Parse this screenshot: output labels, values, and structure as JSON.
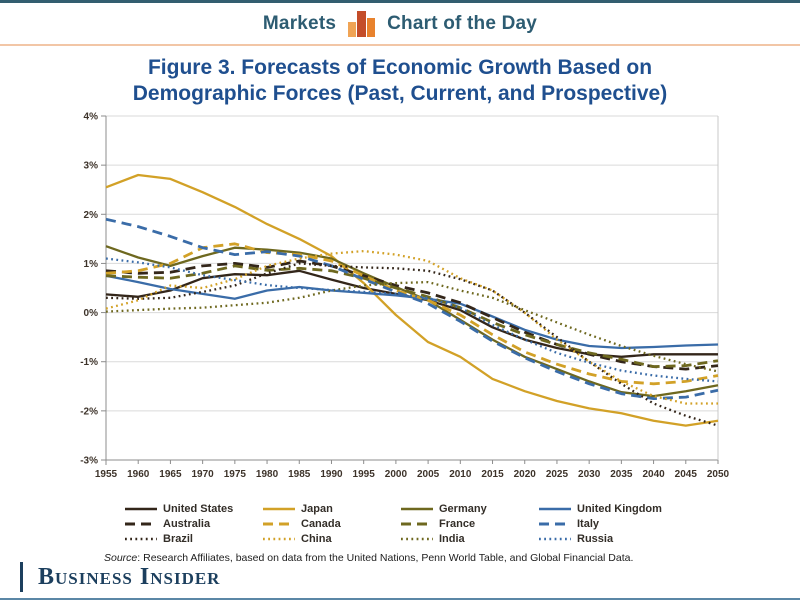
{
  "header": {
    "left_label": "Markets",
    "right_label": "Chart of the Day",
    "icon": "bar-chart-icon"
  },
  "title": {
    "line1": "Figure 3. Forecasts of Economic Growth Based on",
    "line2": "Demographic Forces (Past, Current, and Prospective)"
  },
  "chart_data": {
    "type": "line",
    "x": [
      1955,
      1960,
      1965,
      1970,
      1975,
      1980,
      1985,
      1990,
      1995,
      2000,
      2005,
      2010,
      2015,
      2020,
      2025,
      2030,
      2035,
      2040,
      2045,
      2050
    ],
    "ylim": [
      -3,
      4
    ],
    "ytick_step": 1,
    "ytick_labels": [
      "4%",
      "3%",
      "2%",
      "1%",
      "0%",
      "-1%",
      "-2%",
      "-3%"
    ],
    "grid": true,
    "legend_position": "bottom",
    "palette": {
      "dark": "#33261a",
      "gold": "#d2a127",
      "olive": "#6e681f",
      "blue": "#3a6ca8"
    },
    "series": [
      {
        "name": "United States",
        "family": "dark",
        "dash": "solid",
        "values": [
          0.37,
          0.32,
          0.45,
          0.7,
          0.78,
          0.76,
          0.85,
          0.67,
          0.5,
          0.38,
          0.25,
          0.05,
          -0.3,
          -0.55,
          -0.72,
          -0.85,
          -0.9,
          -0.85,
          -0.85,
          -0.85
        ]
      },
      {
        "name": "Japan",
        "family": "gold",
        "dash": "solid",
        "values": [
          2.55,
          2.8,
          2.72,
          2.45,
          2.15,
          1.8,
          1.5,
          1.15,
          0.6,
          -0.05,
          -0.6,
          -0.9,
          -1.35,
          -1.6,
          -1.8,
          -1.95,
          -2.05,
          -2.2,
          -2.3,
          -2.2
        ]
      },
      {
        "name": "Germany",
        "family": "olive",
        "dash": "solid",
        "values": [
          1.35,
          1.12,
          0.95,
          1.15,
          1.32,
          1.28,
          1.22,
          1.1,
          0.8,
          0.52,
          0.25,
          -0.15,
          -0.55,
          -0.9,
          -1.15,
          -1.4,
          -1.62,
          -1.7,
          -1.6,
          -1.48
        ]
      },
      {
        "name": "United Kingdom",
        "family": "blue",
        "dash": "solid",
        "values": [
          0.75,
          0.62,
          0.48,
          0.38,
          0.28,
          0.45,
          0.52,
          0.45,
          0.4,
          0.35,
          0.28,
          0.18,
          -0.08,
          -0.35,
          -0.55,
          -0.68,
          -0.72,
          -0.7,
          -0.67,
          -0.65
        ]
      },
      {
        "name": "Australia",
        "family": "dark",
        "dash": "dashed",
        "values": [
          0.85,
          0.8,
          0.82,
          0.95,
          1.0,
          0.92,
          1.05,
          0.95,
          0.75,
          0.55,
          0.4,
          0.2,
          -0.1,
          -0.4,
          -0.65,
          -0.85,
          -1.0,
          -1.1,
          -1.15,
          -1.08
        ]
      },
      {
        "name": "Canada",
        "family": "gold",
        "dash": "dashed",
        "values": [
          0.8,
          0.85,
          1.0,
          1.32,
          1.4,
          1.22,
          1.18,
          1.05,
          0.75,
          0.45,
          0.25,
          -0.05,
          -0.45,
          -0.8,
          -1.05,
          -1.25,
          -1.4,
          -1.45,
          -1.4,
          -1.28
        ]
      },
      {
        "name": "France",
        "family": "olive",
        "dash": "dashed",
        "values": [
          0.75,
          0.72,
          0.7,
          0.8,
          0.95,
          0.86,
          0.9,
          0.85,
          0.7,
          0.5,
          0.32,
          0.1,
          -0.2,
          -0.45,
          -0.65,
          -0.82,
          -0.95,
          -1.1,
          -1.08,
          -0.98
        ]
      },
      {
        "name": "Italy",
        "family": "blue",
        "dash": "dashed",
        "values": [
          1.9,
          1.75,
          1.55,
          1.32,
          1.18,
          1.24,
          1.15,
          0.95,
          0.68,
          0.42,
          0.18,
          -0.18,
          -0.58,
          -0.92,
          -1.2,
          -1.45,
          -1.65,
          -1.75,
          -1.72,
          -1.58
        ]
      },
      {
        "name": "Brazil",
        "family": "dark",
        "dash": "dotted",
        "values": [
          0.3,
          0.28,
          0.3,
          0.42,
          0.55,
          0.8,
          1.0,
          0.95,
          0.92,
          0.9,
          0.85,
          0.68,
          0.45,
          0.0,
          -0.5,
          -1.0,
          -1.45,
          -1.85,
          -2.1,
          -2.3
        ]
      },
      {
        "name": "China",
        "family": "gold",
        "dash": "dotted",
        "values": [
          0.08,
          0.25,
          0.55,
          0.5,
          0.68,
          0.95,
          1.1,
          1.2,
          1.25,
          1.18,
          1.05,
          0.7,
          0.45,
          0.0,
          -0.55,
          -1.0,
          -1.4,
          -1.7,
          -1.85,
          -1.85
        ]
      },
      {
        "name": "India",
        "family": "olive",
        "dash": "dotted",
        "values": [
          0.02,
          0.05,
          0.08,
          0.1,
          0.15,
          0.2,
          0.3,
          0.45,
          0.55,
          0.6,
          0.62,
          0.45,
          0.3,
          0.05,
          -0.2,
          -0.45,
          -0.68,
          -0.88,
          -1.05,
          -1.2
        ]
      },
      {
        "name": "Russia",
        "family": "blue",
        "dash": "dotted",
        "values": [
          1.1,
          1.02,
          0.92,
          0.76,
          0.66,
          0.56,
          0.5,
          0.46,
          0.42,
          0.38,
          0.3,
          0.1,
          -0.25,
          -0.55,
          -0.82,
          -1.02,
          -1.18,
          -1.28,
          -1.35,
          -1.4
        ]
      }
    ]
  },
  "source": {
    "prefix": "Source",
    "rest": ": Research Affiliates, based on data from the United Nations, Penn World Table, and Global Financial Data."
  },
  "footer": {
    "logo_text": "Business Insider"
  }
}
